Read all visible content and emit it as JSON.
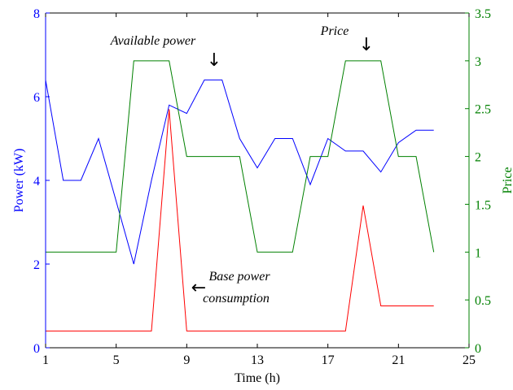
{
  "chart_data": {
    "type": "line",
    "title": "",
    "xlabel": "Time (h)",
    "ylabel_left": "Power (kW)",
    "ylabel_right": "Price",
    "xlim": [
      1,
      25
    ],
    "ylim_left": [
      0,
      8
    ],
    "ylim_right": [
      0,
      3.5
    ],
    "x_ticks": [
      "1",
      "5",
      "9",
      "13",
      "17",
      "21",
      "25"
    ],
    "y_left_ticks": [
      "0",
      "2",
      "4",
      "6",
      "8"
    ],
    "y_right_ticks": [
      "0",
      "0.5",
      "1",
      "1.5",
      "2",
      "2.5",
      "3",
      "3.5"
    ],
    "grid": false,
    "colors": {
      "available": "#0000ff",
      "base": "#ff0000",
      "price": "#008000",
      "left_axis": "#0000ff",
      "right_axis": "#008000"
    },
    "series": [
      {
        "name": "Available power",
        "axis": "left",
        "x": [
          1,
          2,
          3,
          4,
          5,
          6,
          7,
          8,
          9,
          10,
          11,
          12,
          13,
          14,
          15,
          16,
          17,
          18,
          19,
          20,
          21,
          22,
          23
        ],
        "y": [
          6.4,
          4.0,
          4.0,
          5.0,
          3.5,
          2.0,
          4.0,
          5.8,
          5.6,
          6.4,
          6.4,
          5.0,
          4.3,
          5.0,
          5.0,
          3.9,
          5.0,
          4.7,
          4.7,
          4.2,
          4.9,
          5.2,
          5.2
        ]
      },
      {
        "name": "Price",
        "axis": "right",
        "x": [
          1,
          2,
          3,
          4,
          5,
          6,
          7,
          8,
          9,
          10,
          11,
          12,
          13,
          14,
          15,
          16,
          17,
          18,
          19,
          20,
          21,
          22,
          23
        ],
        "y": [
          1,
          1,
          1,
          1,
          1,
          3,
          3,
          3,
          2,
          2,
          2,
          2,
          1,
          1,
          1,
          2,
          2,
          3,
          3,
          3,
          2,
          2,
          1
        ]
      },
      {
        "name": "Base power consumption",
        "axis": "left",
        "x": [
          1,
          2,
          3,
          4,
          5,
          6,
          7,
          8,
          9,
          10,
          11,
          12,
          13,
          14,
          15,
          16,
          17,
          18,
          19,
          20,
          21,
          22,
          23
        ],
        "y": [
          0.4,
          0.4,
          0.4,
          0.4,
          0.4,
          0.4,
          0.4,
          5.7,
          0.4,
          0.4,
          0.4,
          0.4,
          0.4,
          0.4,
          0.4,
          0.4,
          0.4,
          0.4,
          3.4,
          1.0,
          1.0,
          1.0,
          1.0
        ]
      }
    ],
    "annotations": [
      {
        "text": "Available power",
        "arrow": "↓"
      },
      {
        "text": "Price",
        "arrow": "↓"
      },
      {
        "text_line1": "Base power",
        "text_line2": "consumption",
        "arrow": "←"
      }
    ]
  }
}
